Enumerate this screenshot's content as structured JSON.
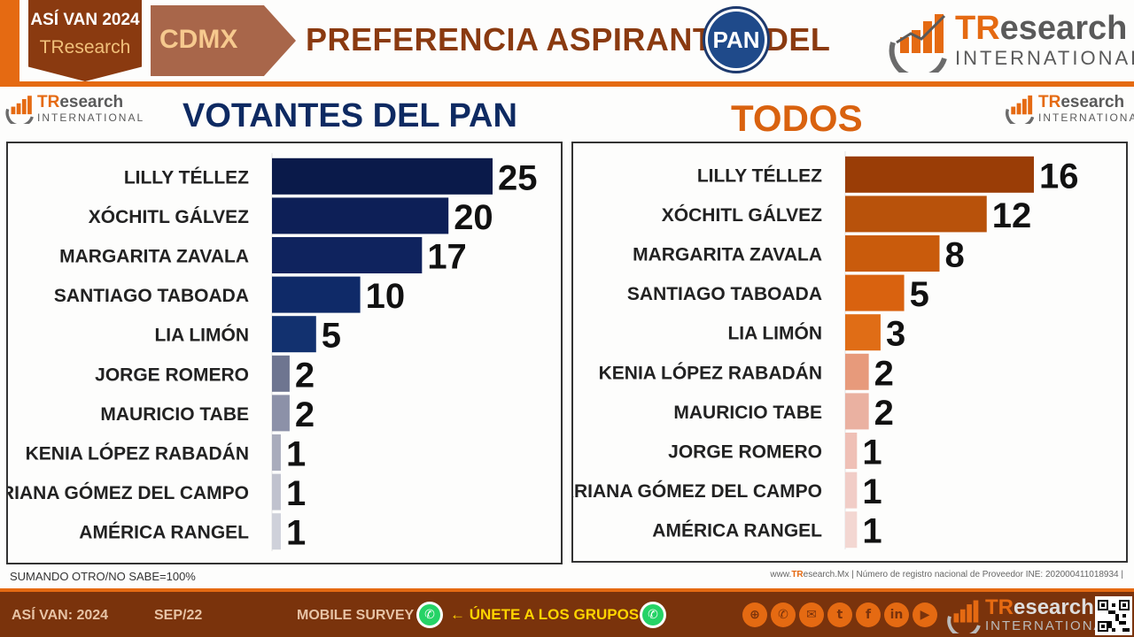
{
  "header": {
    "badge_line1": "ASÍ VAN 2024",
    "badge_line2": "TResearch",
    "region": "CDMX",
    "title": "PREFERENCIA ASPIRANTES DEL",
    "party_logo_text": "PAN"
  },
  "brand": {
    "name_highlight": "TR",
    "name_rest": "esearch",
    "tagline": "INTERNATIONAL"
  },
  "left_panel": {
    "title": "VOTANTES  DEL PAN"
  },
  "right_panel": {
    "title": "TODOS"
  },
  "chart_data": [
    {
      "type": "bar",
      "orientation": "horizontal",
      "title": "VOTANTES  DEL PAN",
      "categories": [
        "LILLY TÉLLEZ",
        "XÓCHITL GÁLVEZ",
        "MARGARITA ZAVALA",
        "SANTIAGO TABOADA",
        "LIA LIMÓN",
        "JORGE ROMERO",
        "MAURICIO TABE",
        "KENIA LÓPEZ RABADÁN",
        "MARIANA GÓMEZ DEL CAMPO",
        "AMÉRICA RANGEL"
      ],
      "values": [
        25,
        20,
        17,
        10,
        5,
        2,
        2,
        1,
        1,
        1
      ],
      "colors": [
        "#0a1a4a",
        "#0d1f57",
        "#0f235e",
        "#0f2a68",
        "#12316f",
        "#6e7590",
        "#8c91a8",
        "#a9acbc",
        "#c0c2ce",
        "#cfd1da"
      ],
      "data_labels": true
    },
    {
      "type": "bar",
      "orientation": "horizontal",
      "title": "TODOS",
      "categories": [
        "LILLY TÉLLEZ",
        "XÓCHITL GÁLVEZ",
        "MARGARITA ZAVALA",
        "SANTIAGO TABOADA",
        "LIA LIMÓN",
        "KENIA LÓPEZ RABADÁN",
        "MAURICIO TABE",
        "JORGE ROMERO",
        "MARIANA GÓMEZ DEL CAMPO",
        "AMÉRICA RANGEL"
      ],
      "values": [
        16,
        12,
        8,
        5,
        3,
        2,
        2,
        1,
        1,
        1
      ],
      "colors": [
        "#9a3d06",
        "#b8520b",
        "#c95b0c",
        "#d9620f",
        "#e06d16",
        "#e79a7b",
        "#eab1a1",
        "#efc0b6",
        "#f1cdc7",
        "#f3d7d2"
      ],
      "data_labels": true
    }
  ],
  "footnote": "SUMANDO OTRO/NO SABE=100%",
  "credit": {
    "prefix": "www.",
    "highlight": "TR",
    "site_rest": "esearch.Mx",
    "text": " | Número  de  registro  nacional  de  Proveedor  INE:  202000411018934   |"
  },
  "footer": {
    "label1": "ASÍ VAN: 2024",
    "label2": "SEP/22",
    "label3": "MOBILE  SURVEY",
    "join": "← ÚNETE  A  LOS  GRUPOS  →",
    "social_icons": [
      "globe-icon",
      "phone-icon",
      "mail-icon",
      "twitter-icon",
      "facebook-icon",
      "linkedin-icon",
      "youtube-icon"
    ],
    "social_glyphs": [
      "⊕",
      "✆",
      "✉",
      "t",
      "f",
      "in",
      "▶"
    ]
  },
  "colors": {
    "accent": "#e56a12",
    "footer_bg": "#7a330c",
    "title_blue": "#0e2a62",
    "title_orange": "#d9620f"
  }
}
